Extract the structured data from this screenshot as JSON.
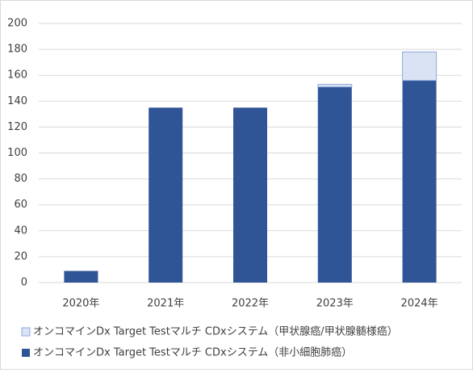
{
  "chart_data": {
    "type": "stacked_bar",
    "categories": [
      "2020年",
      "2021年",
      "2022年",
      "2023年",
      "2024年"
    ],
    "series": [
      {
        "name": "オンコマインDx Target Testマルチ CDxシステム（非小細胞肺癌）",
        "color": "#2f5597",
        "values": [
          9,
          135,
          135,
          151,
          156
        ]
      },
      {
        "name": "オンコマインDx Target Testマルチ CDxシステム（甲状腺癌/甲状腺髄様癌）",
        "color": "#dae3f3",
        "values": [
          0,
          0,
          0,
          2,
          22
        ]
      }
    ],
    "ylim": [
      0,
      200
    ],
    "yticks": [
      0,
      20,
      40,
      60,
      80,
      100,
      120,
      140,
      160,
      180,
      200
    ],
    "grid": true
  }
}
